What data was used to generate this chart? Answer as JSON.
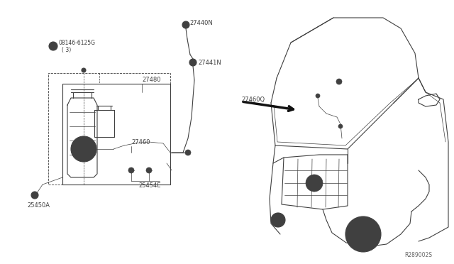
{
  "bg_color": "#ffffff",
  "line_color": "#404040",
  "thin": 0.5,
  "med": 0.8,
  "thick": 1.5,
  "fs": 6.0,
  "fs_small": 5.0,
  "fs_ref": 5.5,
  "labels": {
    "part_B_num": "08146-6125G",
    "part_B_qty": "( 3)",
    "l27480": "27480",
    "l27460": "27460",
    "l27440N": "27440N",
    "l27441N": "27441N",
    "l27460Q": "27460Q",
    "l25454E": "25454E",
    "l25450A": "25450A",
    "ref": "R289002S"
  }
}
